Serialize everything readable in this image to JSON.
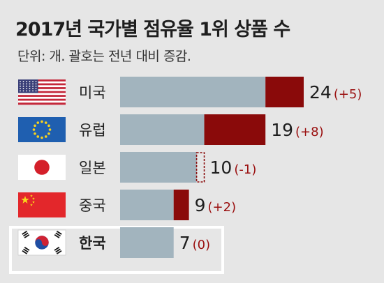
{
  "title": "2017년 국가별 점유율 1위 상품 수",
  "subtitle": "단위: 개. 괄호는 전년 대비 증감.",
  "chart_data": {
    "type": "bar",
    "orientation": "horizontal",
    "stacked": true,
    "categories": [
      "미국",
      "유럽",
      "일본",
      "중국",
      "한국"
    ],
    "flag_icons": [
      "us-flag-icon",
      "eu-flag-icon",
      "japan-flag-icon",
      "china-flag-icon",
      "korea-flag-icon"
    ],
    "values": [
      24,
      19,
      10,
      9,
      7
    ],
    "changes": [
      5,
      8,
      -1,
      2,
      0
    ],
    "value_labels": [
      "24",
      "19",
      "10",
      "9",
      "7"
    ],
    "change_labels": [
      "(+5)",
      "(+8)",
      "(-1)",
      "(+2)",
      "(0)"
    ],
    "highlighted_category": "한국",
    "series": [
      {
        "name": "",
        "values": [
          19,
          11,
          10,
          7,
          7
        ],
        "color": "#a2b4be"
      },
      {
        "name": "",
        "values": [
          5,
          8,
          0,
          2,
          0
        ],
        "color": "#8a0a0a"
      }
    ],
    "decrease_marker_color": "#8a0a0a",
    "change_text_color": "#9a0f0f",
    "xlim": [
      0,
      24
    ],
    "grid": false
  }
}
